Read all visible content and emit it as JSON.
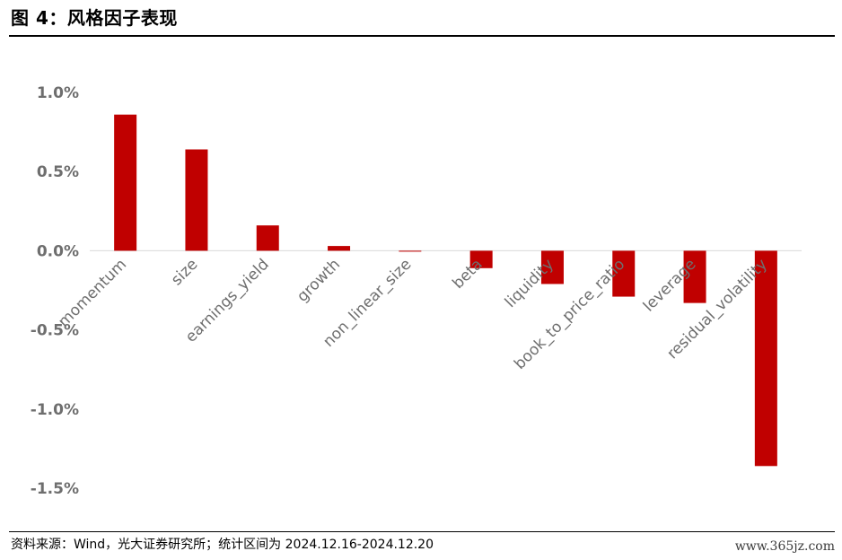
{
  "figure_title": "图 4：风格因子表现",
  "source_note": "资料来源：Wind，光大证券研究所；统计区间为 2024.12.16-2024.12.20",
  "watermark": "www.365jz.com",
  "chart_data": {
    "type": "bar",
    "categories": [
      "momentum",
      "size",
      "earnings_yield",
      "growth",
      "non_linear_size",
      "beta",
      "liquidity",
      "book_to_price_ratio",
      "leverage",
      "residual_volatility"
    ],
    "values": [
      0.86,
      0.64,
      0.16,
      0.03,
      -0.005,
      -0.11,
      -0.21,
      -0.29,
      -0.33,
      -1.36
    ],
    "unit": "%",
    "ylim": [
      -1.5,
      1.0
    ],
    "yticks": [
      "1.0%",
      "0.5%",
      "0.0%",
      "-0.5%",
      "-1.0%",
      "-1.5%"
    ],
    "ytick_values": [
      1.0,
      0.5,
      0.0,
      -0.5,
      -1.0,
      -1.5
    ],
    "bar_color": "#c00000",
    "grid": false,
    "legend": "none"
  }
}
